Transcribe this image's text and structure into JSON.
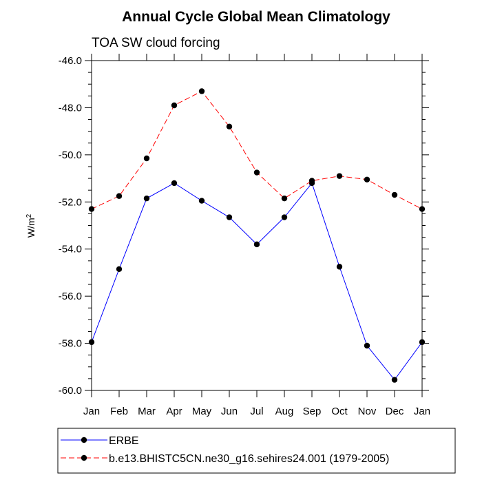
{
  "chart_data": {
    "type": "line",
    "title": "Annual Cycle Global Mean Climatology",
    "subtitle": "TOA SW cloud forcing",
    "ylabel": "W/m",
    "ylabel_superscript": "2",
    "xlabel": "",
    "categories": [
      "Jan",
      "Feb",
      "Mar",
      "Apr",
      "May",
      "Jun",
      "Jul",
      "Aug",
      "Sep",
      "Oct",
      "Nov",
      "Dec",
      "Jan"
    ],
    "ylim": [
      -60.0,
      -46.0
    ],
    "yticks": [
      "-46.0",
      "-48.0",
      "-50.0",
      "-52.0",
      "-54.0",
      "-56.0",
      "-58.0",
      "-60.0"
    ],
    "ytick_values": [
      -46,
      -48,
      -50,
      -52,
      -54,
      -56,
      -58,
      -60
    ],
    "grid": false,
    "legend_position": "bottom",
    "series": [
      {
        "name": "ERBE",
        "color": "#0000ff",
        "dash": "solid",
        "marker": "filled-circle",
        "values": [
          -57.95,
          -54.85,
          -51.85,
          -51.2,
          -51.95,
          -52.65,
          -53.8,
          -52.65,
          -51.2,
          -54.75,
          -58.1,
          -59.55,
          -57.95
        ]
      },
      {
        "name": "b.e13.BHISTC5CN.ne30_g16.sehires24.001 (1979-2005)",
        "color": "#ff0000",
        "dash": "dashed",
        "marker": "filled-circle",
        "values": [
          -52.3,
          -51.75,
          -50.15,
          -47.9,
          -47.3,
          -48.8,
          -50.75,
          -51.85,
          -51.1,
          -50.9,
          -51.05,
          -51.7,
          -52.3
        ]
      }
    ]
  }
}
